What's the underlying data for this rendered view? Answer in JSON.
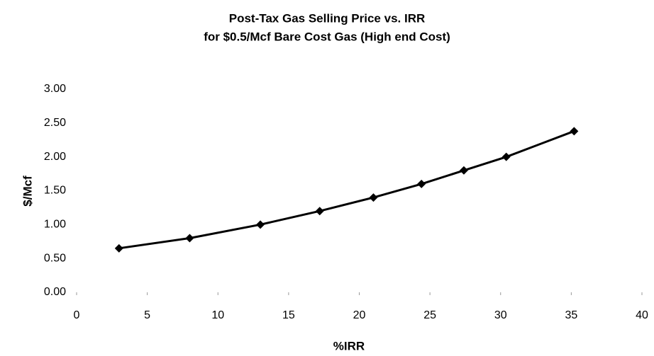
{
  "chart_data": {
    "type": "line",
    "title": "Post-Tax Gas Selling Price vs. IRR",
    "subtitle": "for $0.5/Mcf Bare Cost Gas (High end Cost)",
    "x_label": "%IRR",
    "y_label": "$/Mcf",
    "x": [
      3,
      8,
      13,
      17.2,
      21,
      24.4,
      27.4,
      30.4,
      35.2
    ],
    "values": [
      0.65,
      0.8,
      1.0,
      1.2,
      1.4,
      1.6,
      1.8,
      2.0,
      2.38
    ],
    "color": "#000000",
    "xlim": [
      0,
      40
    ],
    "xticks": [
      0,
      5,
      10,
      15,
      20,
      25,
      30,
      35,
      40
    ],
    "ylim": [
      0,
      3
    ],
    "yticks": [
      {
        "value": 0,
        "label": "0.00"
      },
      {
        "value": 0.5,
        "label": "0.50"
      },
      {
        "value": 1,
        "label": "1.00"
      },
      {
        "value": 1.5,
        "label": "1.50"
      },
      {
        "value": 2,
        "label": "2.00"
      },
      {
        "value": 2.5,
        "label": "2.50"
      },
      {
        "value": 3,
        "label": "3.00"
      }
    ],
    "grid": false
  }
}
